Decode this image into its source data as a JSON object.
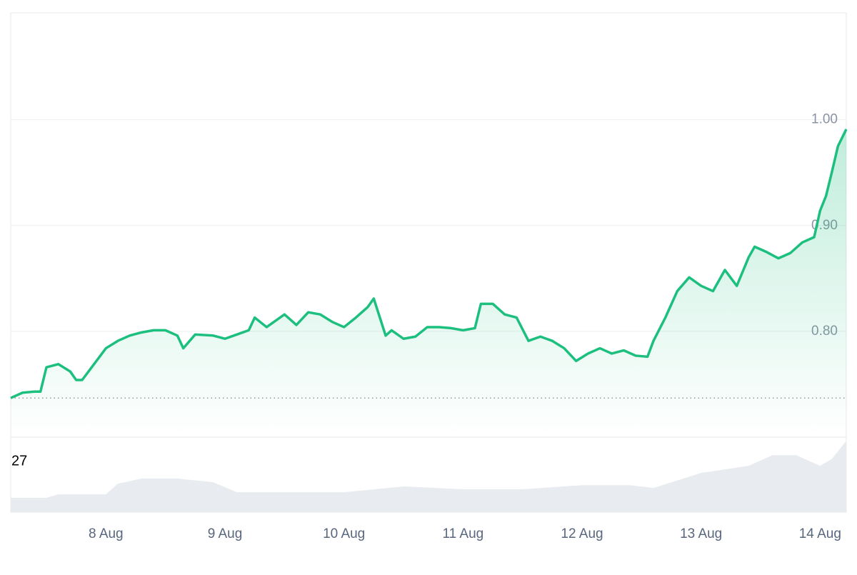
{
  "chart_data": {
    "type": "line",
    "color": "#1dbf7f",
    "grid": true,
    "x": [
      7.2,
      7.3,
      7.4,
      7.45,
      7.5,
      7.6,
      7.7,
      7.75,
      7.8,
      7.9,
      8.0,
      8.1,
      8.2,
      8.3,
      8.4,
      8.5,
      8.6,
      8.65,
      8.75,
      8.9,
      9.0,
      9.1,
      9.2,
      9.25,
      9.35,
      9.5,
      9.6,
      9.7,
      9.8,
      9.9,
      10.0,
      10.1,
      10.2,
      10.25,
      10.35,
      10.4,
      10.5,
      10.6,
      10.7,
      10.8,
      10.9,
      11.0,
      11.1,
      11.15,
      11.25,
      11.35,
      11.45,
      11.55,
      11.65,
      11.75,
      11.85,
      11.95,
      12.05,
      12.15,
      12.25,
      12.35,
      12.45,
      12.55,
      12.6,
      12.7,
      12.8,
      12.9,
      13.0,
      13.1,
      13.2,
      13.3,
      13.4,
      13.45,
      13.55,
      13.65,
      13.75,
      13.85,
      13.95,
      14.0,
      14.05,
      14.1,
      14.15,
      14.22
    ],
    "values": [
      0.737,
      0.742,
      0.743,
      0.743,
      0.766,
      0.769,
      0.762,
      0.754,
      0.754,
      0.769,
      0.784,
      0.791,
      0.796,
      0.799,
      0.801,
      0.801,
      0.796,
      0.784,
      0.797,
      0.796,
      0.793,
      0.797,
      0.801,
      0.813,
      0.804,
      0.816,
      0.806,
      0.818,
      0.816,
      0.809,
      0.804,
      0.813,
      0.823,
      0.831,
      0.796,
      0.801,
      0.793,
      0.795,
      0.804,
      0.804,
      0.803,
      0.801,
      0.803,
      0.826,
      0.826,
      0.816,
      0.813,
      0.791,
      0.795,
      0.791,
      0.784,
      0.772,
      0.779,
      0.784,
      0.779,
      0.782,
      0.777,
      0.776,
      0.791,
      0.813,
      0.838,
      0.851,
      0.843,
      0.838,
      0.858,
      0.843,
      0.87,
      0.88,
      0.875,
      0.869,
      0.874,
      0.884,
      0.889,
      0.914,
      0.928,
      0.951,
      0.975,
      0.991
    ],
    "xlim": [
      7.2,
      14.22
    ],
    "xticks": [
      {
        "value": 8,
        "label": "8 Aug"
      },
      {
        "value": 9,
        "label": "9 Aug"
      },
      {
        "value": 10,
        "label": "10 Aug"
      },
      {
        "value": 11,
        "label": "11 Aug"
      },
      {
        "value": 12,
        "label": "12 Aug"
      },
      {
        "value": 13,
        "label": "13 Aug"
      },
      {
        "value": 14,
        "label": "14 Aug"
      }
    ],
    "ylim": [
      0.7,
      1.101
    ],
    "yticks": [
      {
        "value": 0.8,
        "label": "0.80"
      },
      {
        "value": 0.9,
        "label": "0.90"
      },
      {
        "value": 1.0,
        "label": "1.00"
      }
    ],
    "volume": {
      "x": [
        7.2,
        7.5,
        7.6,
        8.0,
        8.1,
        8.3,
        8.6,
        8.9,
        9.1,
        9.5,
        10.0,
        10.5,
        11.0,
        11.5,
        12.0,
        12.4,
        12.6,
        13.0,
        13.4,
        13.6,
        13.8,
        14.0,
        14.1,
        14.22
      ],
      "values": [
        7.6,
        7.6,
        9.5,
        9.5,
        15.2,
        17.9,
        17.9,
        16,
        10.6,
        10.6,
        10.6,
        13.7,
        12.2,
        12.2,
        14.4,
        14.4,
        12.9,
        20.9,
        24.7,
        30.4,
        30.4,
        24.7,
        28.5,
        38
      ],
      "ylim": [
        0,
        40
      ],
      "yticks": [
        27
      ],
      "color": "#e8ebef"
    }
  }
}
